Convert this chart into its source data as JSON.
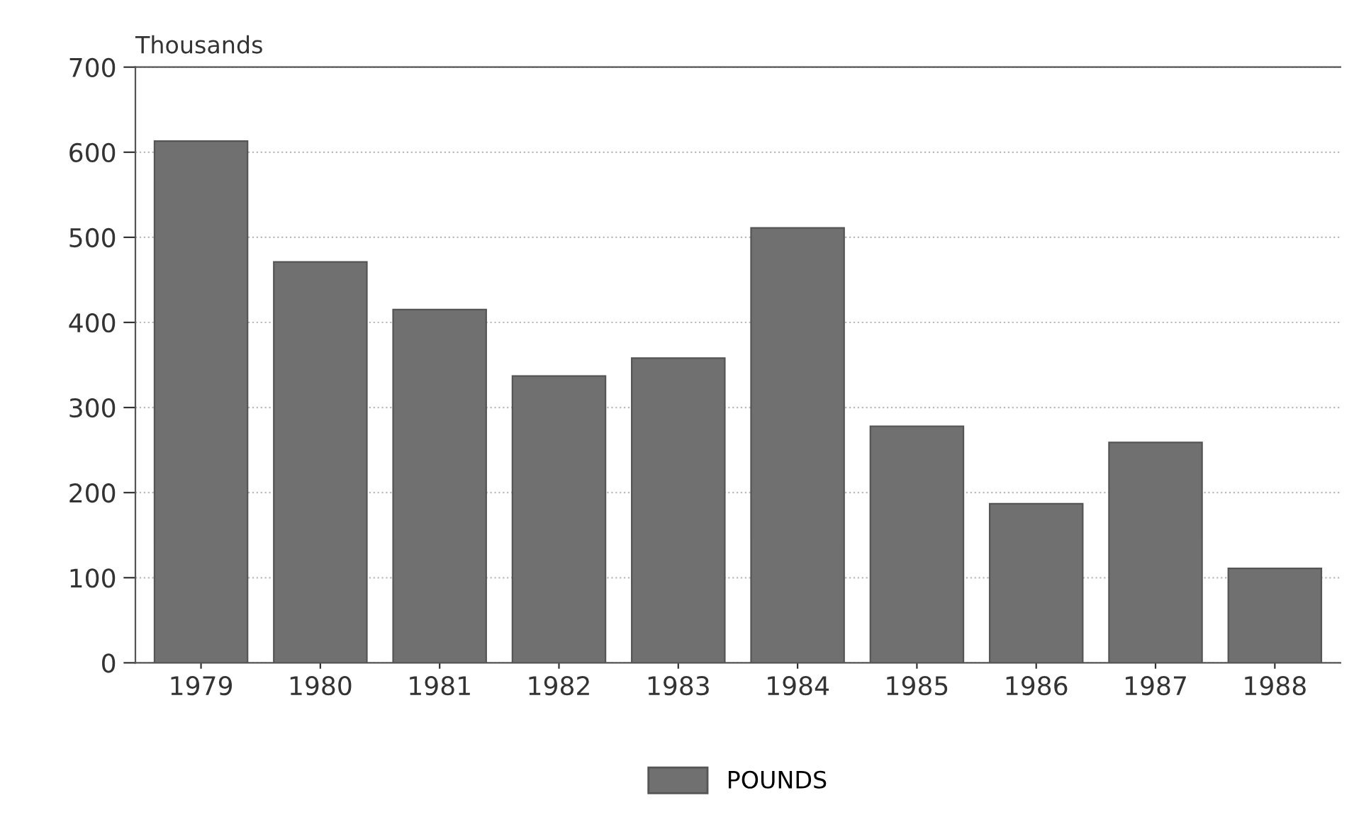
{
  "chart_data": {
    "type": "bar",
    "ylabel": "Thousands",
    "categories": [
      "1979",
      "1980",
      "1981",
      "1982",
      "1983",
      "1984",
      "1985",
      "1986",
      "1987",
      "1988"
    ],
    "series": [
      {
        "name": "POUNDS",
        "color": "#707070",
        "values": [
          613,
          471,
          415,
          337,
          358,
          511,
          278,
          187,
          259,
          111
        ]
      }
    ],
    "ylim": [
      0,
      700
    ],
    "yticks": [
      0,
      100,
      200,
      300,
      400,
      500,
      600,
      700
    ],
    "grid": "y",
    "legend": "bottom"
  }
}
